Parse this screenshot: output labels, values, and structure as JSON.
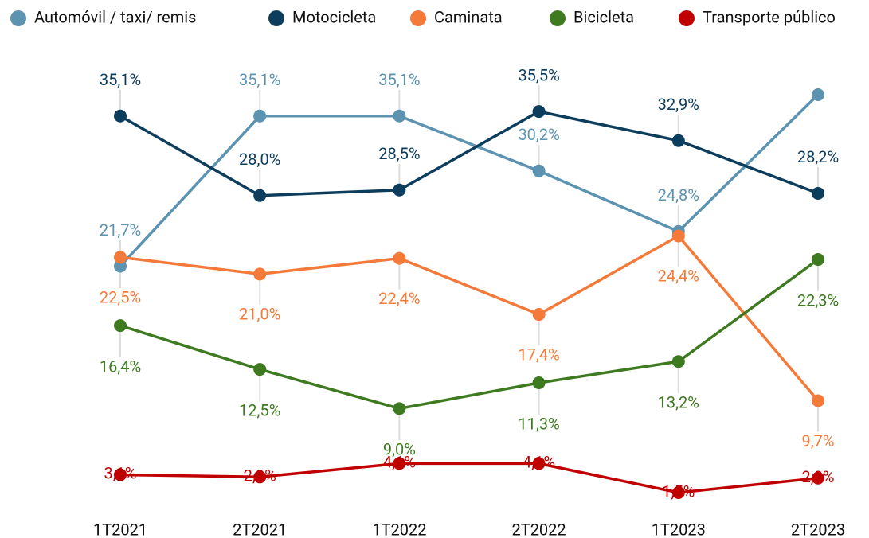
{
  "chart_data": {
    "type": "line",
    "categories": [
      "1T2021",
      "2T2021",
      "1T2022",
      "2T2022",
      "1T2023",
      "2T2023"
    ],
    "series": [
      {
        "name": "Automóvil / taxi/ remis",
        "color": "#5b93b0",
        "values": [
          21.7,
          35.1,
          35.1,
          30.2,
          24.8,
          37.0
        ],
        "value_labels": [
          "21,7%",
          "35,1%",
          "35,1%",
          "30,2%",
          "24,8%",
          null
        ]
      },
      {
        "name": "Motocicleta",
        "color": "#0d3d5c",
        "values": [
          35.1,
          28.0,
          28.5,
          35.5,
          32.9,
          28.2
        ],
        "value_labels": [
          "35,1%",
          "28,0%",
          "28,5%",
          "35,5%",
          "32,9%",
          "28,2%"
        ]
      },
      {
        "name": "Caminata",
        "color": "#f47a3a",
        "values": [
          22.5,
          21.0,
          22.4,
          17.4,
          24.4,
          9.7
        ],
        "value_labels": [
          "22,5%",
          "21,0%",
          "22,4%",
          "17,4%",
          "24,4%",
          "9,7%"
        ]
      },
      {
        "name": "Bicicleta",
        "color": "#3e7a1f",
        "values": [
          16.4,
          12.5,
          9.0,
          11.3,
          13.2,
          22.3
        ],
        "value_labels": [
          "16,4%",
          "12,5%",
          "9,0%",
          "11,3%",
          "13,2%",
          "22,3%"
        ]
      },
      {
        "name": "Transporte público",
        "color": "#c00000",
        "values": [
          3.1,
          2.9,
          4.1,
          4.1,
          1.5,
          2.8
        ],
        "value_labels": [
          "3,1%",
          "2,9%",
          "4,1%",
          "4,1%",
          "1,5%",
          "2,8%"
        ]
      }
    ]
  }
}
